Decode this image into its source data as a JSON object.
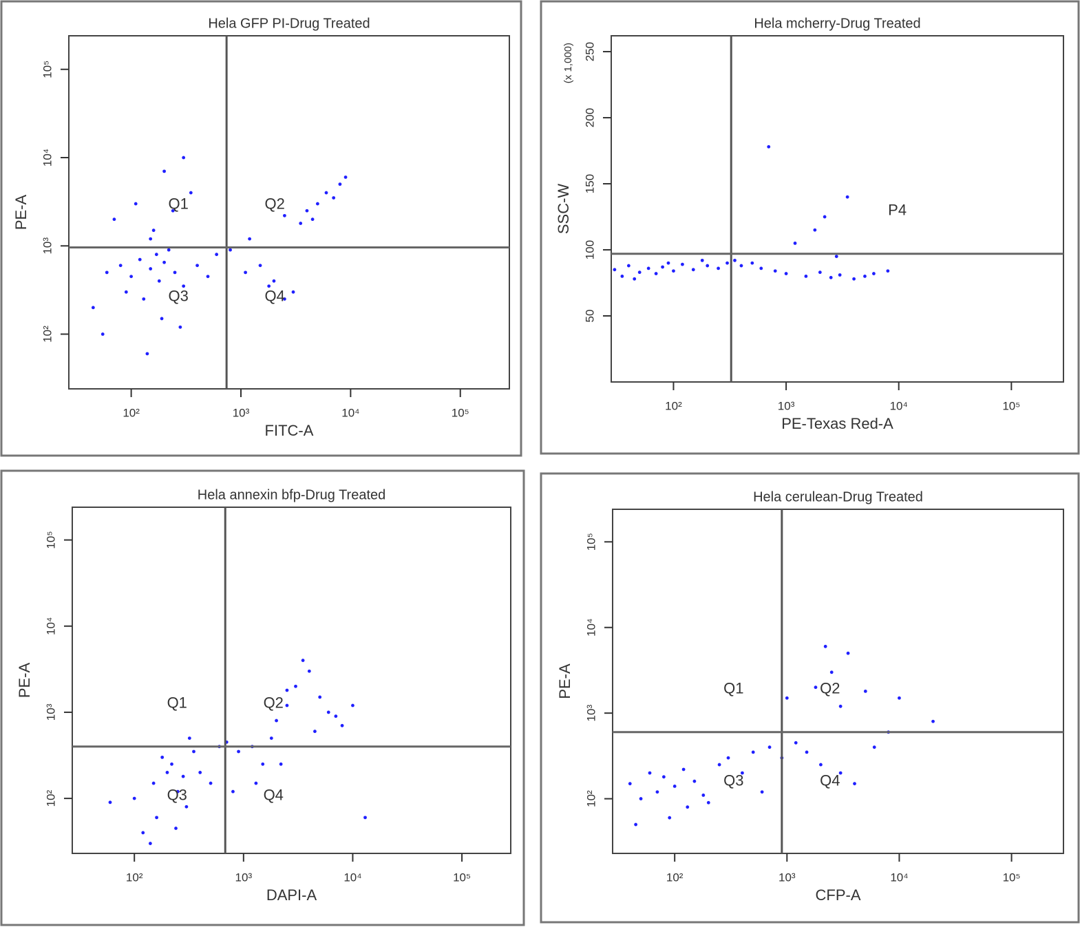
{
  "chart_data": [
    {
      "type": "scatter",
      "title": "Hela GFP PI-Drug Treated",
      "x_label": "FITC-A",
      "y_label": "PE-A",
      "xscale": "log",
      "yscale": "log",
      "xlim": [
        27,
        280000
      ],
      "ylim": [
        24,
        240000
      ],
      "xticks": [
        {
          "value": 100,
          "label": "10²"
        },
        {
          "value": 1000,
          "label": "10³"
        },
        {
          "value": 10000,
          "label": "10⁴"
        },
        {
          "value": 100000,
          "label": "10⁵"
        }
      ],
      "yticks": [
        {
          "value": 100,
          "label": "10²"
        },
        {
          "value": 1000,
          "label": "10³"
        },
        {
          "value": 10000,
          "label": "10⁴"
        },
        {
          "value": 100000,
          "label": "10⁵"
        }
      ],
      "gate_x": 740,
      "gate_y": 960,
      "quadrant_labels": [
        "Q1",
        "Q2",
        "Q3",
        "Q4"
      ],
      "color": "#2020ff",
      "x": [
        60,
        80,
        100,
        120,
        150,
        180,
        200,
        250,
        300,
        400,
        500,
        90,
        130,
        170,
        220,
        70,
        110,
        160,
        240,
        350,
        45,
        55,
        140,
        190,
        280,
        600,
        800,
        1200,
        1500,
        2000,
        3000,
        4000,
        5000,
        6000,
        7000,
        8000,
        4500,
        3500,
        2500,
        9000,
        1100,
        1800,
        2500,
        150,
        200,
        300
      ],
      "values": [
        500,
        600,
        450,
        700,
        550,
        400,
        650,
        500,
        350,
        600,
        450,
        300,
        250,
        800,
        900,
        2000,
        3000,
        1500,
        2500,
        4000,
        200,
        100,
        60,
        150,
        120,
        800,
        900,
        1200,
        600,
        400,
        300,
        2500,
        3000,
        4000,
        3500,
        5000,
        2000,
        1800,
        2200,
        6000,
        500,
        350,
        250,
        1200,
        7000,
        10000
      ]
    },
    {
      "type": "scatter",
      "title": "Hela mcherry-Drug Treated",
      "x_label": "PE-Texas Red-A",
      "y_label": "SSC-W",
      "y_unit_label": "(x 1,000)",
      "xscale": "log",
      "yscale": "linear",
      "xlim": [
        28,
        290000
      ],
      "ylim": [
        0,
        262
      ],
      "xticks": [
        {
          "value": 100,
          "label": "10²"
        },
        {
          "value": 1000,
          "label": "10³"
        },
        {
          "value": 10000,
          "label": "10⁴"
        },
        {
          "value": 100000,
          "label": "10⁵"
        }
      ],
      "yticks": [
        50,
        100,
        150,
        200,
        250
      ],
      "gate_x": 325,
      "gate_y": 97,
      "annotations": [
        "P4"
      ],
      "color": "#2020ff",
      "x": [
        30,
        35,
        40,
        50,
        60,
        70,
        80,
        100,
        120,
        150,
        200,
        250,
        300,
        350,
        400,
        500,
        600,
        800,
        1000,
        1500,
        2000,
        2500,
        3000,
        4000,
        5000,
        6000,
        8000,
        45,
        90,
        180,
        700,
        1200,
        2200,
        3500,
        1800,
        2800
      ],
      "values": [
        85,
        80,
        88,
        83,
        86,
        82,
        87,
        84,
        89,
        85,
        88,
        86,
        90,
        92,
        88,
        90,
        86,
        84,
        82,
        80,
        83,
        79,
        81,
        78,
        80,
        82,
        84,
        78,
        90,
        92,
        178,
        105,
        125,
        140,
        115,
        95
      ]
    },
    {
      "type": "scatter",
      "title": "Hela annexin bfp-Drug Treated",
      "x_label": "DAPI-A",
      "y_label": "PE-A",
      "xscale": "log",
      "yscale": "log",
      "xlim": [
        27,
        280000
      ],
      "ylim": [
        23,
        240000
      ],
      "xticks": [
        {
          "value": 100,
          "label": "10²"
        },
        {
          "value": 1000,
          "label": "10³"
        },
        {
          "value": 10000,
          "label": "10⁴"
        },
        {
          "value": 100000,
          "label": "10⁵"
        }
      ],
      "yticks": [
        {
          "value": 100,
          "label": "10²"
        },
        {
          "value": 1000,
          "label": "10³"
        },
        {
          "value": 10000,
          "label": "10⁴"
        },
        {
          "value": 100000,
          "label": "10⁵"
        }
      ],
      "gate_x": 680,
      "gate_y": 400,
      "quadrant_labels": [
        "Q1",
        "Q2",
        "Q3",
        "Q4"
      ],
      "color": "#2020ff",
      "x": [
        100,
        150,
        200,
        250,
        300,
        180,
        220,
        160,
        120,
        280,
        350,
        400,
        500,
        600,
        140,
        240,
        320,
        700,
        900,
        1200,
        1500,
        2000,
        2500,
        3000,
        4000,
        5000,
        6000,
        7000,
        8000,
        3500,
        2500,
        1800,
        4500,
        2200,
        800,
        1300,
        60,
        13000,
        10000
      ],
      "values": [
        100,
        150,
        200,
        120,
        80,
        300,
        250,
        60,
        40,
        180,
        350,
        200,
        150,
        400,
        30,
        45,
        500,
        450,
        350,
        400,
        250,
        800,
        1200,
        2000,
        3000,
        1500,
        1000,
        900,
        700,
        4000,
        1800,
        500,
        600,
        250,
        120,
        150,
        90,
        60,
        1200
      ]
    },
    {
      "type": "scatter",
      "title": "Hela cerulean-Drug Treated",
      "x_label": "CFP-A",
      "y_label": "PE-A",
      "xscale": "log",
      "yscale": "log",
      "xlim": [
        28,
        290000
      ],
      "ylim": [
        23,
        240000
      ],
      "xticks": [
        {
          "value": 100,
          "label": "10²"
        },
        {
          "value": 1000,
          "label": "10³"
        },
        {
          "value": 10000,
          "label": "10⁴"
        },
        {
          "value": 100000,
          "label": "10⁵"
        }
      ],
      "yticks": [
        {
          "value": 100,
          "label": "10²"
        },
        {
          "value": 1000,
          "label": "10³"
        },
        {
          "value": 10000,
          "label": "10⁴"
        },
        {
          "value": 100000,
          "label": "10⁵"
        }
      ],
      "gate_x": 900,
      "gate_y": 600,
      "quadrant_labels": [
        "Q1",
        "Q2",
        "Q3",
        "Q4"
      ],
      "color": "#2020ff",
      "x": [
        40,
        50,
        60,
        70,
        80,
        100,
        120,
        150,
        200,
        250,
        300,
        400,
        500,
        700,
        900,
        1200,
        1500,
        2000,
        3000,
        4000,
        6000,
        8000,
        10000,
        1800,
        2500,
        3500,
        5000,
        2200,
        3000,
        45,
        90,
        130,
        180,
        600,
        20000,
        1000
      ],
      "values": [
        150,
        100,
        200,
        120,
        180,
        140,
        220,
        160,
        90,
        250,
        300,
        200,
        350,
        400,
        300,
        450,
        350,
        250,
        200,
        150,
        400,
        600,
        1500,
        2000,
        3000,
        5000,
        1800,
        6000,
        1200,
        50,
        60,
        80,
        110,
        120,
        800,
        1500
      ]
    }
  ]
}
